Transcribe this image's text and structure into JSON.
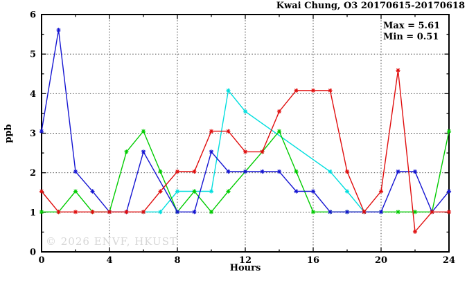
{
  "header": {
    "title": "Kwai Chung, O3 20170615-20170618"
  },
  "annotations": {
    "max_label": "Max = 5.61",
    "min_label": "Min = 0.51",
    "watermark": "© 2026 ENVF, HKUST"
  },
  "chart_data": {
    "type": "line",
    "title": "Kwai Chung, O3 20170615-20170618",
    "xlabel": "Hours",
    "ylabel": "ppb",
    "xlim": [
      0,
      24
    ],
    "ylim": [
      0,
      6
    ],
    "x_major_ticks": [
      0,
      4,
      8,
      12,
      16,
      20,
      24
    ],
    "x_minor_step": 2,
    "y_major_ticks": [
      0,
      1,
      2,
      3,
      4,
      5,
      6
    ],
    "y_minor_step": 0.5,
    "grid": true,
    "legend_position": "none",
    "stats": {
      "max": 5.61,
      "min": 0.51
    },
    "x": [
      0,
      1,
      2,
      3,
      4,
      5,
      6,
      7,
      8,
      9,
      10,
      11,
      12,
      13,
      14,
      15,
      16,
      17,
      18,
      19,
      20,
      21,
      22,
      23,
      24
    ],
    "series": [
      {
        "name": "cyan-series",
        "color": "#00dede",
        "values": [
          null,
          null,
          null,
          null,
          null,
          null,
          1.01,
          1.01,
          1.53,
          1.53,
          1.53,
          4.08,
          3.55,
          null,
          null,
          null,
          null,
          2.03,
          1.53,
          1.01,
          null,
          null,
          null,
          null,
          null
        ]
      },
      {
        "name": "green-series",
        "color": "#00cc00",
        "values": [
          1.01,
          1.01,
          1.53,
          1.01,
          1.01,
          2.53,
          3.05,
          2.03,
          1.01,
          1.53,
          1.01,
          1.53,
          2.03,
          2.53,
          3.05,
          2.03,
          1.01,
          1.01,
          1.01,
          1.01,
          1.01,
          1.01,
          1.01,
          1.01,
          3.05
        ]
      },
      {
        "name": "blue-series",
        "color": "#1414d2",
        "values": [
          3.05,
          5.61,
          2.03,
          1.53,
          1.01,
          1.01,
          2.53,
          null,
          1.01,
          1.01,
          2.53,
          2.03,
          2.03,
          2.03,
          2.03,
          1.53,
          1.53,
          1.01,
          1.01,
          1.01,
          1.01,
          2.03,
          2.03,
          1.01,
          1.53
        ]
      },
      {
        "name": "red-series",
        "color": "#e00d0d",
        "values": [
          1.53,
          1.01,
          1.01,
          1.01,
          1.01,
          1.01,
          1.01,
          1.53,
          2.03,
          2.03,
          3.05,
          3.05,
          2.53,
          2.53,
          3.55,
          4.08,
          4.08,
          4.08,
          2.03,
          1.01,
          1.53,
          4.59,
          0.51,
          1.01,
          1.01
        ]
      }
    ]
  }
}
